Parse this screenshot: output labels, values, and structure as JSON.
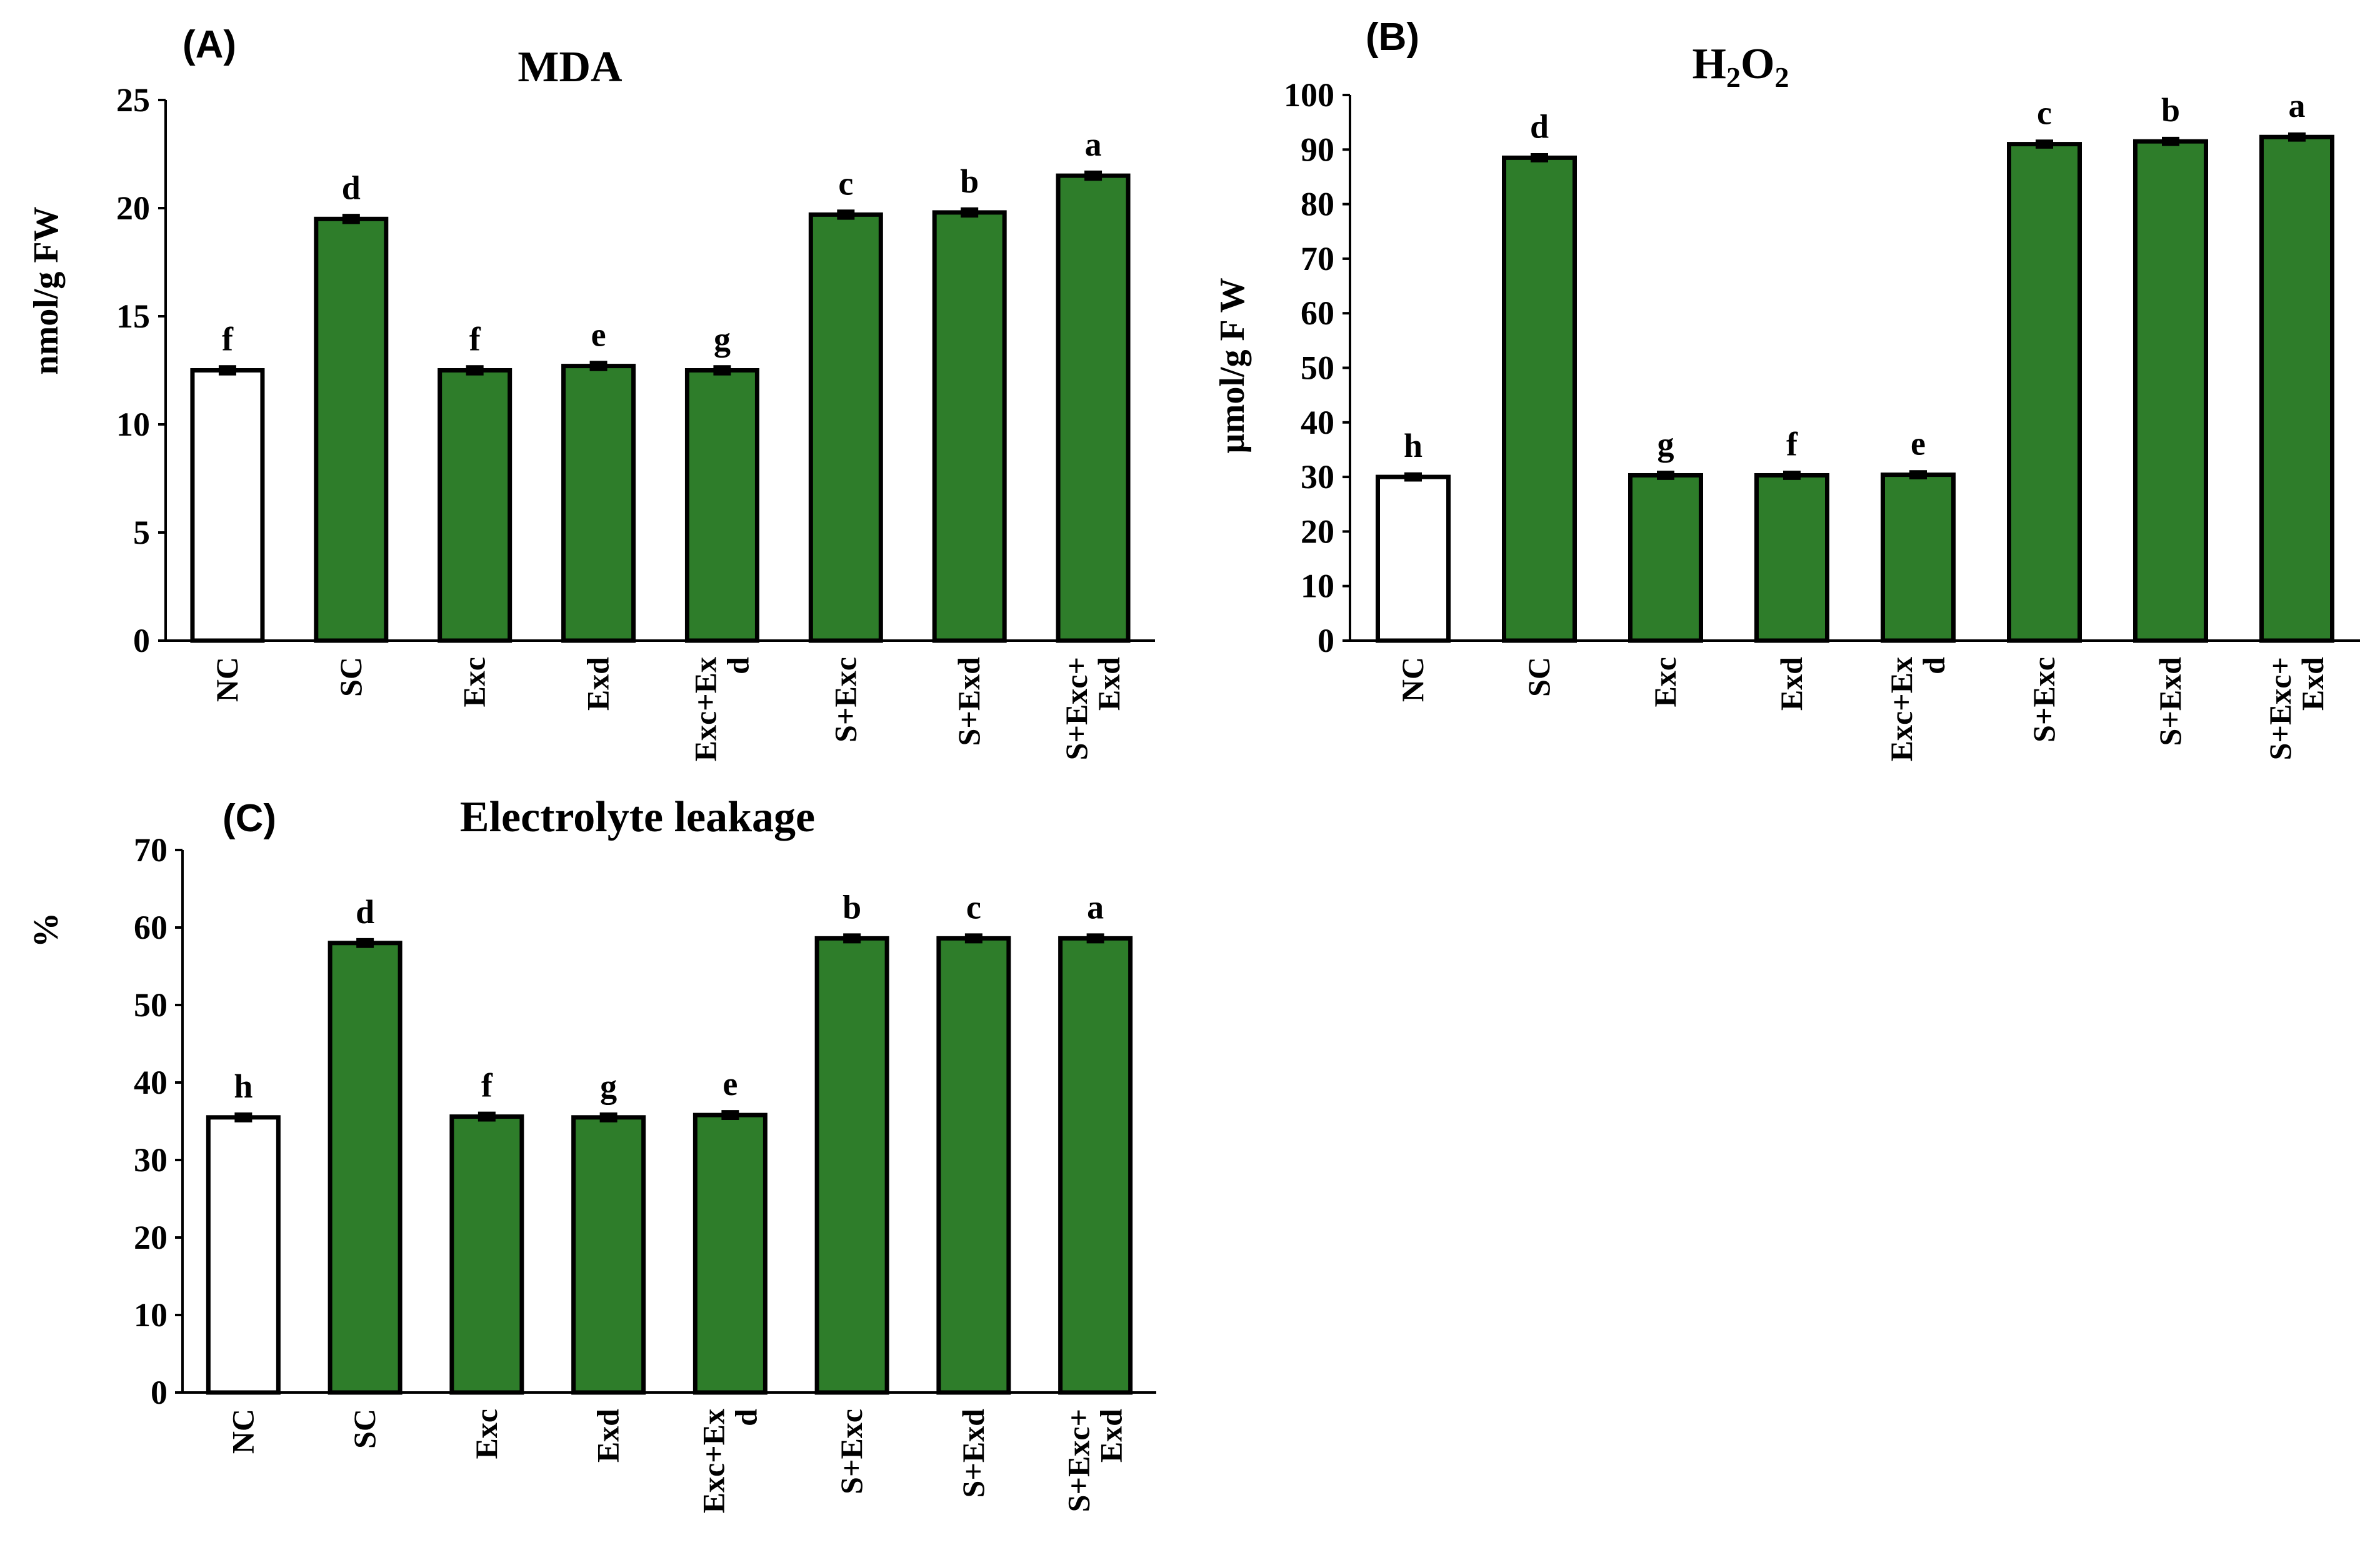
{
  "panels": [
    {
      "id": "A",
      "label": "(A)",
      "colors": {
        "control": "#ffffff",
        "treated": "#2e7d2a"
      },
      "chart_data": {
        "type": "bar",
        "title": "MDA",
        "ylabel": "nmol/g FW",
        "xlabel": "",
        "ylim": [
          0,
          25
        ],
        "ytick_step": 5,
        "yticks": [
          "0",
          "5",
          "10",
          "15",
          "20",
          "25"
        ],
        "categories": [
          "NC",
          "SC",
          "Exc",
          "Exd",
          "Exc+Ex\nd",
          "S+Exc",
          "S+Exd",
          "S+Exc+\nExd"
        ],
        "values": [
          12.5,
          19.5,
          12.5,
          12.7,
          12.5,
          19.7,
          19.8,
          21.5
        ],
        "errors": [
          0.15,
          0.15,
          0.15,
          0.15,
          0.15,
          0.15,
          0.15,
          0.15
        ],
        "significance": [
          "f",
          "d",
          "f",
          "e",
          "g",
          "c",
          "b",
          "a"
        ],
        "legend": "none"
      }
    },
    {
      "id": "B",
      "label": "(B)",
      "colors": {
        "control": "#ffffff",
        "treated": "#2e7d2a"
      },
      "chart_data": {
        "type": "bar",
        "title_main": "H",
        "title_sub1": "2",
        "title_mid": "O",
        "title_sub2": "2",
        "ylabel": "µmol/g F W",
        "xlabel": "",
        "ylim": [
          0,
          100
        ],
        "ytick_step": 10,
        "yticks": [
          "0",
          "10",
          "20",
          "30",
          "40",
          "50",
          "60",
          "70",
          "80",
          "90",
          "100"
        ],
        "categories": [
          "NC",
          "SC",
          "Exc",
          "Exd",
          "Exc+Ex\nd",
          "S+Exc",
          "S+Exd",
          "S+Exc+\nExd"
        ],
        "values": [
          30,
          88.5,
          30.3,
          30.3,
          30.4,
          91,
          91.5,
          92.3
        ],
        "errors": [
          0.5,
          0.5,
          0.5,
          0.5,
          0.5,
          0.5,
          0.5,
          0.5
        ],
        "significance": [
          "h",
          "d",
          "g",
          "f",
          "e",
          "c",
          "b",
          "a"
        ],
        "legend": "none"
      }
    },
    {
      "id": "C",
      "label": "(C)",
      "colors": {
        "control": "#ffffff",
        "treated": "#2e7d2a"
      },
      "chart_data": {
        "type": "bar",
        "title": "Electrolyte leakage",
        "ylabel": "%",
        "xlabel": "",
        "ylim": [
          0,
          70
        ],
        "ytick_step": 10,
        "yticks": [
          "0",
          "10",
          "20",
          "30",
          "40",
          "50",
          "60",
          "70"
        ],
        "categories": [
          "NC",
          "SC",
          "Exc",
          "Exd",
          "Exc+Ex\nd",
          "S+Exc",
          "S+Exd",
          "S+Exc+\nExd"
        ],
        "values": [
          35.5,
          58,
          35.6,
          35.5,
          35.8,
          58.6,
          58.6,
          58.6
        ],
        "errors": [
          0.4,
          0.4,
          0.4,
          0.4,
          0.4,
          0.4,
          0.4,
          0.4
        ],
        "significance": [
          "h",
          "d",
          "f",
          "g",
          "e",
          "b",
          "c",
          "a"
        ],
        "legend": "none"
      }
    }
  ]
}
